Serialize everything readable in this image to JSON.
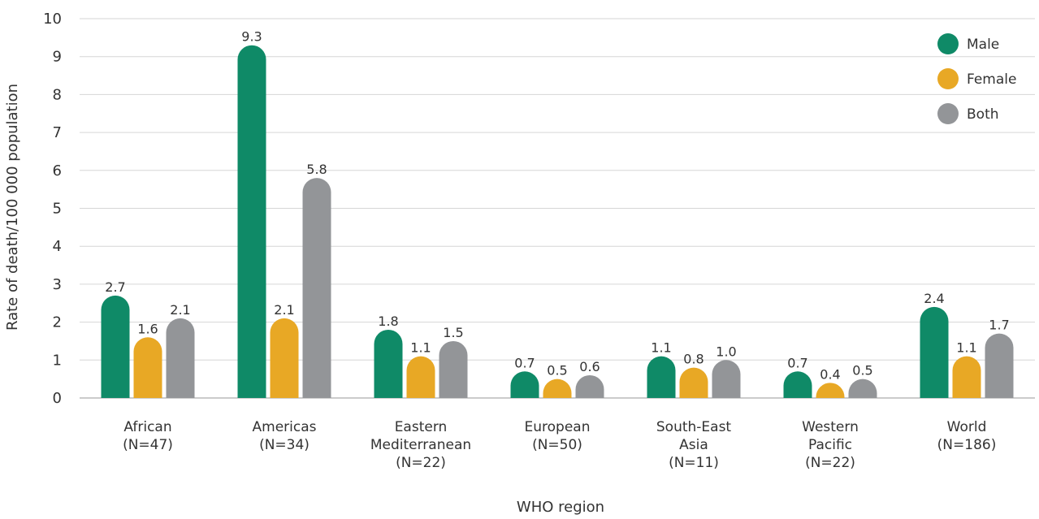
{
  "chart_data": {
    "type": "bar",
    "xlabel": "WHO region",
    "ylabel": "Rate of death/100 000 population",
    "ylim": [
      0,
      10
    ],
    "yticks": [
      "0",
      "1",
      "2",
      "3",
      "4",
      "5",
      "6",
      "7",
      "8",
      "9",
      "10"
    ],
    "grid": true,
    "legend_position": "top-right",
    "categories": [
      [
        "African",
        "(N=47)"
      ],
      [
        "Americas",
        "(N=34)"
      ],
      [
        "Eastern",
        "Mediterranean",
        "(N=22)"
      ],
      [
        "European",
        "(N=50)"
      ],
      [
        "South-East",
        "Asia",
        "(N=11)"
      ],
      [
        "Western",
        "Pacific",
        "(N=22)"
      ],
      [
        "World",
        "(N=186)"
      ]
    ],
    "series": [
      {
        "name": "Male",
        "color": "#0f8a67",
        "values": [
          2.7,
          9.3,
          1.8,
          0.7,
          1.1,
          0.7,
          2.4
        ],
        "labels": [
          "2.7",
          "9.3",
          "1.8",
          "0.7",
          "1.1",
          "0.7",
          "2.4"
        ]
      },
      {
        "name": "Female",
        "color": "#e8a825",
        "values": [
          1.6,
          2.1,
          1.1,
          0.5,
          0.8,
          0.4,
          1.1
        ],
        "labels": [
          "1.6",
          "2.1",
          "1.1",
          "0.5",
          "0.8",
          "0.4",
          "1.1"
        ]
      },
      {
        "name": "Both",
        "color": "#939598",
        "values": [
          2.1,
          5.8,
          1.5,
          0.6,
          1.0,
          0.5,
          1.7
        ],
        "labels": [
          "2.1",
          "5.8",
          "1.5",
          "0.6",
          "1.0",
          "0.5",
          "1.7"
        ]
      }
    ]
  }
}
